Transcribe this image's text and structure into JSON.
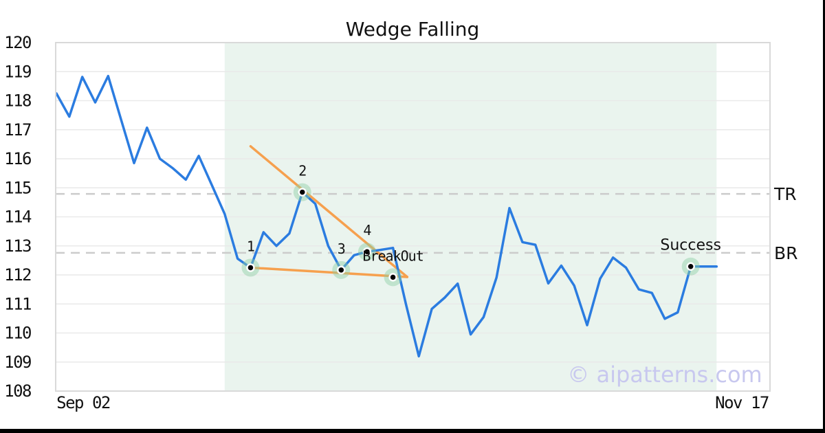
{
  "title": "Wedge Falling",
  "watermark": "© aipatterns.com",
  "x_axis": {
    "left_label": "Sep 02",
    "right_label": "Nov 17"
  },
  "y_axis": {
    "ticks": [
      120,
      119,
      118,
      117,
      116,
      115,
      114,
      113,
      112,
      111,
      110,
      109,
      108
    ]
  },
  "levels": {
    "tr": {
      "label": "TR",
      "value": 114.79
    },
    "br": {
      "label": "BR",
      "value": 112.76
    }
  },
  "annotations": {
    "wedge_points": [
      {
        "label": "1",
        "index": 15,
        "value": 112.25
      },
      {
        "label": "2",
        "index": 19,
        "value": 114.85
      },
      {
        "label": "3",
        "index": 22,
        "value": 112.17
      },
      {
        "label": "4",
        "index": 24,
        "value": 112.8
      }
    ],
    "breakout": {
      "label": "BreakOut",
      "index": 26,
      "value": 111.92
    },
    "success": {
      "label": "Success",
      "index": 49,
      "value": 112.29
    }
  },
  "colors": {
    "price_line": "#2b7ce0",
    "trendline": "#f6a04e",
    "halo": "#8ecfa5",
    "pattern_region": "#eaf4ee",
    "dashed_level": "#cbcbcb",
    "grid": "#e9e9e9",
    "plot_border": "#d9d9d9",
    "marker_dot": "#000000",
    "watermark": "#c8c8ef",
    "text": "#111111"
  },
  "chart_data": {
    "type": "line",
    "title": "Wedge Falling",
    "ylim": [
      108,
      120
    ],
    "grid": true,
    "x_tick_labels": [
      "Sep 02",
      "Nov 17"
    ],
    "series": [
      {
        "name": "price",
        "values": [
          118.25,
          117.45,
          118.82,
          117.94,
          118.85,
          117.35,
          115.85,
          117.07,
          116.0,
          115.67,
          115.28,
          116.1,
          115.1,
          114.1,
          112.56,
          112.25,
          113.47,
          113.0,
          113.43,
          114.85,
          114.45,
          113.0,
          112.17,
          112.68,
          112.8,
          112.86,
          112.93,
          111.0,
          109.2,
          110.83,
          111.22,
          111.7,
          109.95,
          110.55,
          111.91,
          114.3,
          113.13,
          113.04,
          111.71,
          112.32,
          111.63,
          110.27,
          111.87,
          112.6,
          112.25,
          111.5,
          111.38,
          110.49,
          110.71,
          112.29,
          112.29,
          112.29
        ]
      }
    ],
    "pattern_region": {
      "start_index": 13,
      "end_index": 51
    },
    "trendlines": [
      {
        "name": "upper",
        "x1_index": 15,
        "y1": 116.43,
        "x2_index": 27.1,
        "y2": 111.93
      },
      {
        "name": "lower",
        "x1_index": 15,
        "y1": 112.25,
        "x2_index": 27.1,
        "y2": 111.93
      }
    ],
    "levels": [
      {
        "name": "TR",
        "value": 114.79
      },
      {
        "name": "BR",
        "value": 112.76
      }
    ]
  }
}
